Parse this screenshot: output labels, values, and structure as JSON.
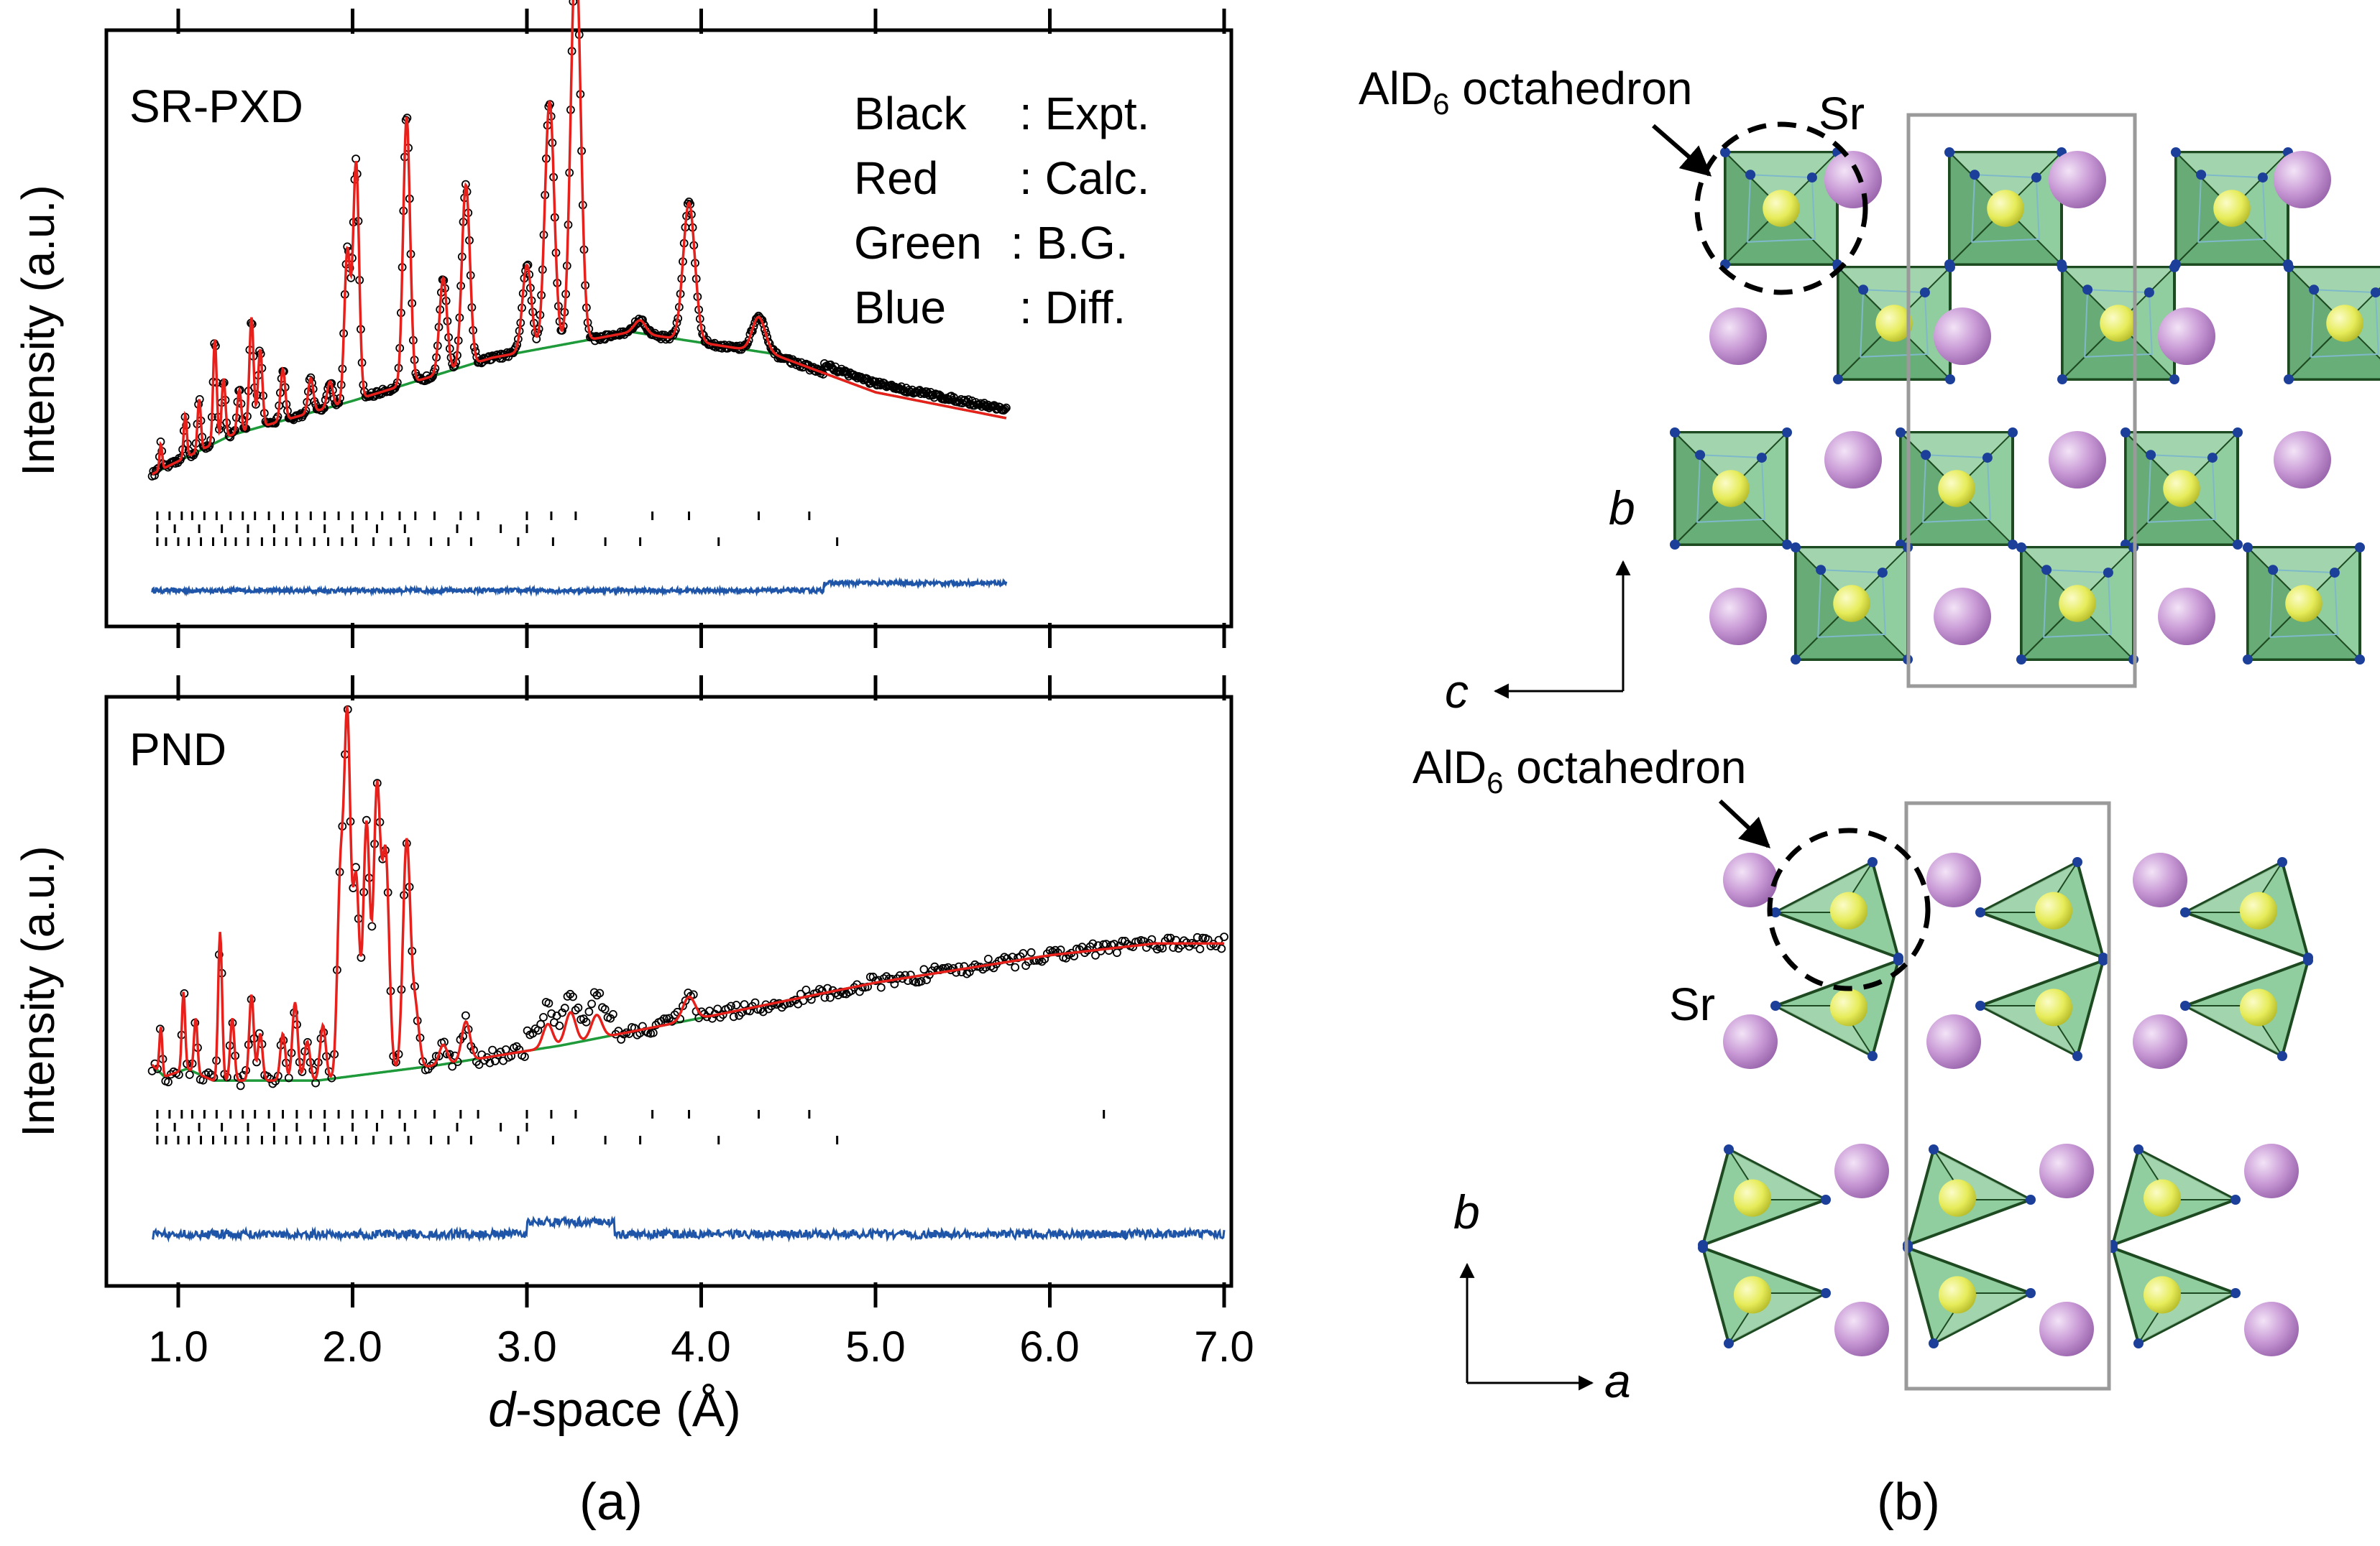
{
  "panel_a": {
    "caption": "(a)",
    "x_axis_label_italic": "d",
    "x_axis_label_rest": "-space (Å)",
    "x_ticks": [
      "1.0",
      "2.0",
      "3.0",
      "4.0",
      "5.0",
      "6.0",
      "7.0"
    ],
    "top": {
      "title": "SR-PXD",
      "y_label": "Intensity (a.u.)",
      "legend": [
        {
          "name": "Black",
          "desc": ": Expt."
        },
        {
          "name": "Red",
          "desc": ": Calc."
        },
        {
          "name": "Green",
          "desc": ": B.G."
        },
        {
          "name": "Blue",
          "desc": ": Diff."
        }
      ]
    },
    "bottom": {
      "title": "PND",
      "y_label": "Intensity (a.u.)"
    }
  },
  "panel_b": {
    "caption": "(b)",
    "label_oct_top": "AlD",
    "label_oct_top_sub": "6",
    "label_oct_top_rest": " octahedron",
    "label_oct_bottom": "AlD",
    "label_oct_bottom_sub": "6",
    "label_oct_bottom_rest": " octahedron",
    "label_sr_top": "Sr",
    "label_sr_bottom": "Sr",
    "axes_top": {
      "up": "b",
      "left": "c"
    },
    "axes_bottom": {
      "up": "b",
      "right": "a"
    }
  },
  "colors": {
    "expt": "#000000",
    "calc": "#e8201c",
    "background": "#1e9a3a",
    "diff": "#1f55a8",
    "octa_face": "#7dc48e",
    "sr_atom": "#c99ad6",
    "al_atom": "#e6ec5a",
    "d_atom": "#1c3f9a"
  },
  "chart_data": [
    {
      "type": "line",
      "title": "SR-PXD",
      "xlabel": "d-space (Å)",
      "ylabel": "Intensity (a.u.)",
      "xlim": [
        0.5,
        7.0
      ],
      "x_ticks": [
        1.0,
        2.0,
        3.0,
        4.0,
        5.0,
        6.0,
        7.0
      ],
      "x_range": [
        0.85,
        5.75
      ],
      "background_points": [
        [
          0.85,
          0.05
        ],
        [
          1.3,
          0.14
        ],
        [
          2.0,
          0.22
        ],
        [
          2.8,
          0.32
        ],
        [
          3.6,
          0.38
        ],
        [
          4.4,
          0.33
        ],
        [
          5.0,
          0.24
        ],
        [
          5.75,
          0.18
        ]
      ],
      "peaks": [
        {
          "d": 0.9,
          "h": 0.06
        },
        {
          "d": 1.04,
          "h": 0.1
        },
        {
          "d": 1.12,
          "h": 0.12
        },
        {
          "d": 1.21,
          "h": 0.24
        },
        {
          "d": 1.26,
          "h": 0.14
        },
        {
          "d": 1.35,
          "h": 0.1
        },
        {
          "d": 1.42,
          "h": 0.26
        },
        {
          "d": 1.47,
          "h": 0.18
        },
        {
          "d": 1.6,
          "h": 0.12
        },
        {
          "d": 1.76,
          "h": 0.08
        },
        {
          "d": 1.87,
          "h": 0.06
        },
        {
          "d": 1.97,
          "h": 0.35
        },
        {
          "d": 2.02,
          "h": 0.55
        },
        {
          "d": 2.31,
          "h": 0.62
        },
        {
          "d": 2.52,
          "h": 0.22
        },
        {
          "d": 2.65,
          "h": 0.42
        },
        {
          "d": 3.0,
          "h": 0.2
        },
        {
          "d": 3.13,
          "h": 0.57
        },
        {
          "d": 3.28,
          "h": 0.92
        },
        {
          "d": 3.65,
          "h": 0.03
        },
        {
          "d": 3.93,
          "h": 0.32
        },
        {
          "d": 4.33,
          "h": 0.08
        }
      ],
      "tick_rows": [
        [
          0.88,
          0.95,
          1.02,
          1.08,
          1.15,
          1.22,
          1.3,
          1.37,
          1.44,
          1.52,
          1.6,
          1.68,
          1.76,
          1.84,
          1.92,
          2.0,
          2.08,
          2.17,
          2.27,
          2.36,
          2.47,
          2.62,
          2.72,
          3.0,
          3.14,
          3.28,
          3.72,
          3.93,
          4.33,
          4.62
        ],
        [
          0.88,
          0.98,
          1.12,
          1.25,
          1.4,
          1.55,
          1.68,
          1.84,
          2.0,
          2.14,
          2.3,
          2.6,
          2.85,
          3.0
        ],
        [
          0.88,
          0.93,
          1.0,
          1.06,
          1.13,
          1.2,
          1.27,
          1.33,
          1.4,
          1.48,
          1.55,
          1.62,
          1.7,
          1.78,
          1.86,
          1.94,
          2.02,
          2.12,
          2.22,
          2.32,
          2.45,
          2.55,
          2.68,
          2.95,
          3.15,
          3.45,
          3.65,
          4.1,
          4.78
        ]
      ]
    },
    {
      "type": "line",
      "title": "PND",
      "xlabel": "d-space (Å)",
      "ylabel": "Intensity (a.u.)",
      "xlim": [
        0.5,
        7.0
      ],
      "x_ticks": [
        1.0,
        2.0,
        3.0,
        4.0,
        5.0,
        6.0,
        7.0
      ],
      "x_range": [
        0.85,
        7.0
      ],
      "background_points": [
        [
          0.85,
          0.06
        ],
        [
          0.92,
          0.03
        ],
        [
          1.05,
          0.05
        ],
        [
          1.2,
          0.02
        ],
        [
          1.8,
          0.02
        ],
        [
          2.5,
          0.06
        ],
        [
          3.2,
          0.11
        ],
        [
          4.0,
          0.18
        ],
        [
          5.0,
          0.27
        ],
        [
          6.0,
          0.34
        ],
        [
          6.6,
          0.37
        ],
        [
          7.0,
          0.37
        ]
      ],
      "peaks": [
        {
          "d": 0.9,
          "h": 0.12
        },
        {
          "d": 1.03,
          "h": 0.2
        },
        {
          "d": 1.1,
          "h": 0.14
        },
        {
          "d": 1.24,
          "h": 0.38
        },
        {
          "d": 1.31,
          "h": 0.16
        },
        {
          "d": 1.42,
          "h": 0.22
        },
        {
          "d": 1.47,
          "h": 0.12
        },
        {
          "d": 1.6,
          "h": 0.12
        },
        {
          "d": 1.67,
          "h": 0.2
        },
        {
          "d": 1.74,
          "h": 0.1
        },
        {
          "d": 1.83,
          "h": 0.14
        },
        {
          "d": 1.93,
          "h": 0.5
        },
        {
          "d": 1.97,
          "h": 0.9
        },
        {
          "d": 2.02,
          "h": 0.5
        },
        {
          "d": 2.08,
          "h": 0.64
        },
        {
          "d": 2.14,
          "h": 0.72
        },
        {
          "d": 2.19,
          "h": 0.55
        },
        {
          "d": 2.31,
          "h": 0.58
        },
        {
          "d": 2.36,
          "h": 0.15
        },
        {
          "d": 2.52,
          "h": 0.05
        },
        {
          "d": 2.65,
          "h": 0.1
        },
        {
          "d": 3.12,
          "h": 0.06
        },
        {
          "d": 3.25,
          "h": 0.08
        },
        {
          "d": 3.4,
          "h": 0.06
        },
        {
          "d": 3.93,
          "h": 0.06
        }
      ],
      "tick_rows": [
        [
          0.88,
          0.95,
          1.02,
          1.08,
          1.15,
          1.22,
          1.3,
          1.37,
          1.44,
          1.52,
          1.6,
          1.68,
          1.76,
          1.84,
          1.92,
          2.0,
          2.08,
          2.17,
          2.27,
          2.36,
          2.47,
          2.62,
          2.72,
          3.0,
          3.14,
          3.28,
          3.72,
          3.93,
          4.33,
          4.62,
          6.31
        ],
        [
          0.88,
          0.98,
          1.12,
          1.25,
          1.4,
          1.55,
          1.68,
          1.84,
          2.0,
          2.14,
          2.3,
          2.6,
          2.85,
          3.0
        ],
        [
          0.88,
          0.93,
          1.0,
          1.06,
          1.13,
          1.2,
          1.27,
          1.33,
          1.4,
          1.48,
          1.55,
          1.62,
          1.7,
          1.78,
          1.86,
          1.94,
          2.02,
          2.12,
          2.22,
          2.32,
          2.45,
          2.55,
          2.68,
          2.95,
          3.15,
          3.45,
          3.65,
          4.1,
          4.78
        ]
      ]
    }
  ]
}
